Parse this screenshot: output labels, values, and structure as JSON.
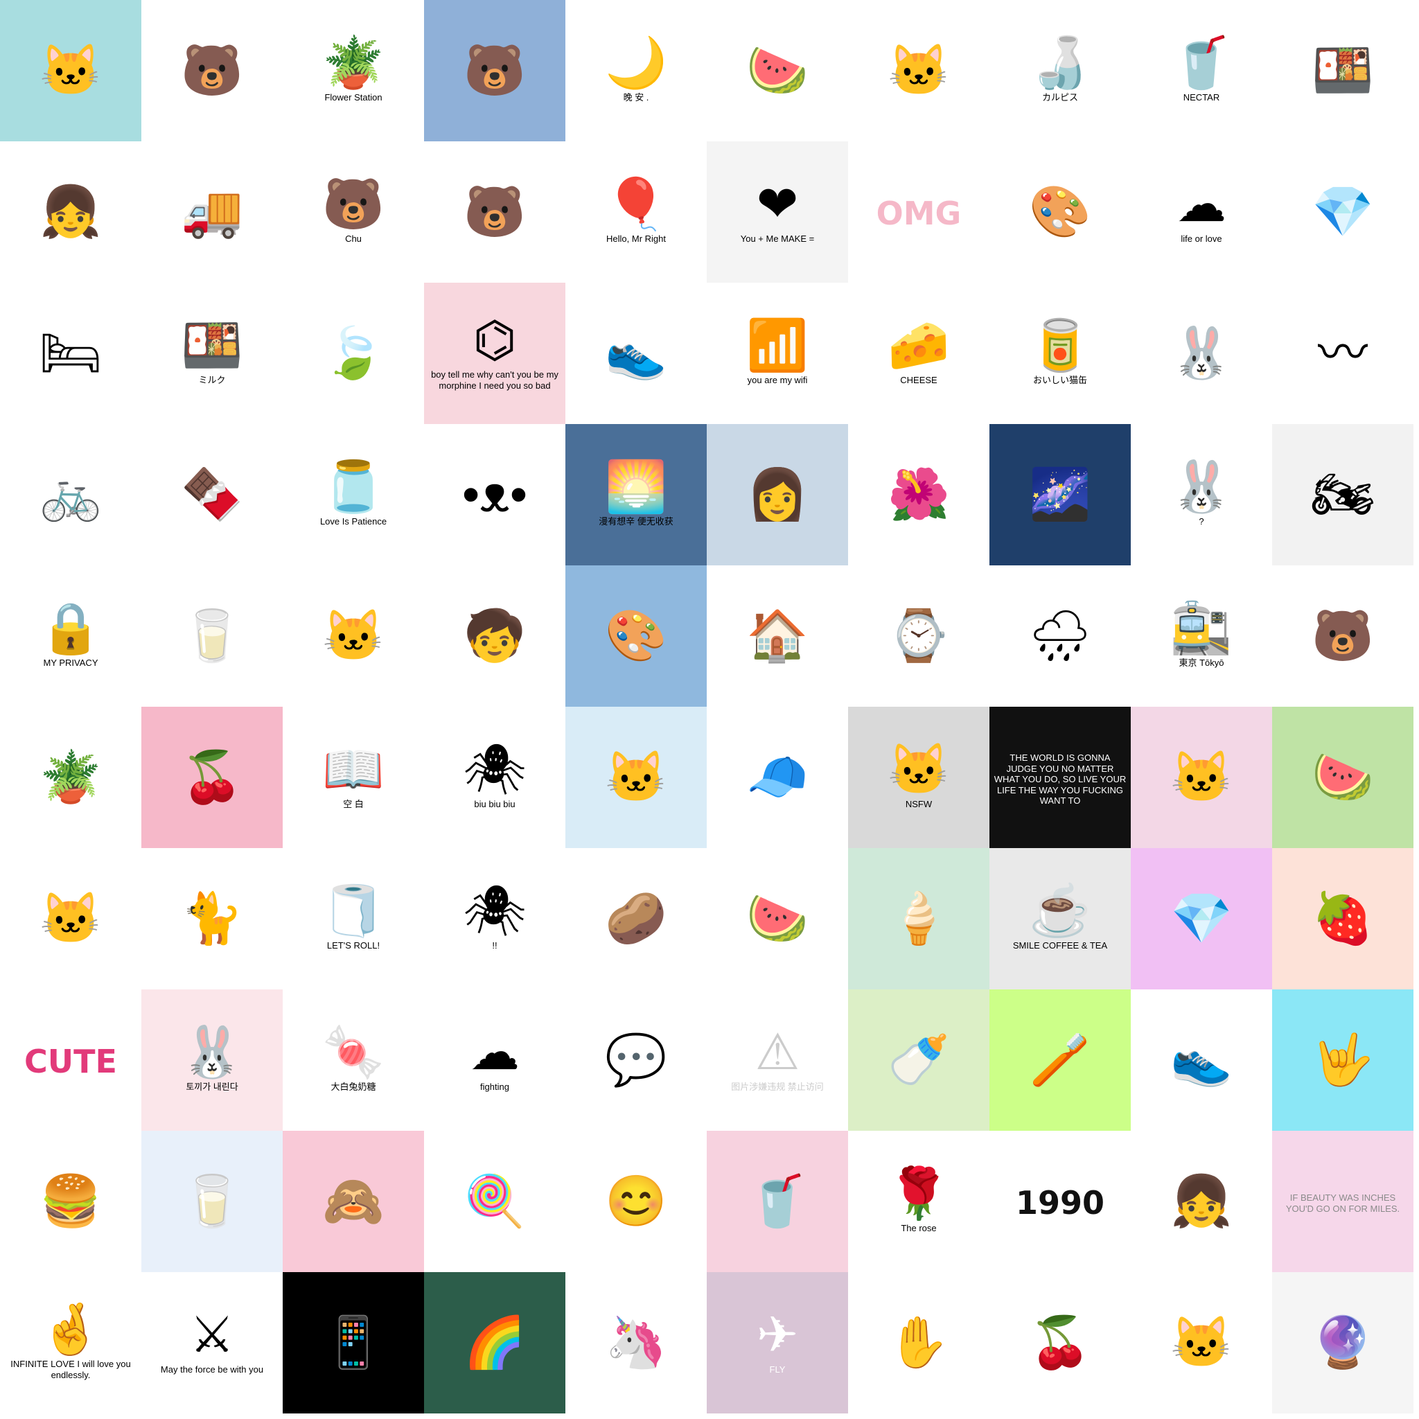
{
  "tiles": [
    {
      "name": "cat-pattern",
      "bg": "#a8dde0",
      "icon": "🐱",
      "caption": ""
    },
    {
      "name": "washing-machine",
      "bg": "#ffffff",
      "icon": "🐻",
      "caption": ""
    },
    {
      "name": "flower-pots",
      "bg": "#ffffff",
      "icon": "🪴",
      "caption": "Flower Station",
      "pattern": "lines"
    },
    {
      "name": "black-bears",
      "bg": "#8fb0d8",
      "icon": "🐻",
      "caption": ""
    },
    {
      "name": "good-night",
      "bg": "#ffffff",
      "icon": "🌙",
      "caption": "晚 安 ."
    },
    {
      "name": "watermelon-pops",
      "bg": "#ffffff",
      "icon": "🍉",
      "caption": "",
      "pattern": "grid"
    },
    {
      "name": "party-cat",
      "bg": "#ffffff",
      "icon": "🐱",
      "caption": ""
    },
    {
      "name": "water-bottle",
      "bg": "#ffffff",
      "icon": "🍶",
      "caption": "カルピス"
    },
    {
      "name": "nectar-drinks",
      "bg": "#ffffff",
      "icon": "🥤",
      "caption": "NECTAR"
    },
    {
      "name": "sushi-box",
      "bg": "#ffffff",
      "icon": "🍱",
      "caption": ""
    },
    {
      "name": "girl-sketch",
      "bg": "#ffffff",
      "icon": "👧",
      "caption": ""
    },
    {
      "name": "food-truck",
      "bg": "#ffffff",
      "icon": "🚚",
      "caption": ""
    },
    {
      "name": "kumamon-grid",
      "bg": "#ffffff",
      "icon": "🐻",
      "caption": "Chu",
      "pattern": "grid"
    },
    {
      "name": "kumamon-face",
      "bg": "#ffffff",
      "icon": "🐻",
      "caption": ""
    },
    {
      "name": "balloons",
      "bg": "#ffffff",
      "icon": "🎈",
      "caption": "Hello, Mr Right"
    },
    {
      "name": "you-me",
      "bg": "#f4f4f4",
      "icon": "❤",
      "caption": "You + Me MAKE ="
    },
    {
      "name": "omg",
      "bg": "#ffffff",
      "icon": "",
      "caption": "OMG",
      "big": true,
      "color": "#f5b8c8"
    },
    {
      "name": "paint-set",
      "bg": "#ffffff",
      "icon": "🎨",
      "caption": ""
    },
    {
      "name": "clouds",
      "bg": "#ffffff",
      "icon": "☁",
      "caption": "life or love"
    },
    {
      "name": "diamond-pink",
      "bg": "#ffffff",
      "icon": "💎",
      "caption": ""
    },
    {
      "name": "girl-bed",
      "bg": "#ffffff",
      "icon": "🛏",
      "caption": ""
    },
    {
      "name": "bento",
      "bg": "#ffffff",
      "icon": "🍱",
      "caption": "ミルク"
    },
    {
      "name": "small-leaf",
      "bg": "#ffffff",
      "icon": "🍃",
      "caption": ""
    },
    {
      "name": "morphine",
      "bg": "#f8d7de",
      "icon": "⌬",
      "caption": "boy tell me why can't you be my morphine I need you so bad"
    },
    {
      "name": "sneaker",
      "bg": "#ffffff",
      "icon": "👟",
      "caption": ""
    },
    {
      "name": "wifi",
      "bg": "#ffffff",
      "icon": "📶",
      "caption": "you are my wifi"
    },
    {
      "name": "cheese",
      "bg": "#ffffff",
      "icon": "🧀",
      "caption": "CHEESE"
    },
    {
      "name": "cat-can",
      "bg": "#ffffff",
      "icon": "🥫",
      "caption": "おいしい猫缶"
    },
    {
      "name": "bunny-plush",
      "bg": "#ffffff",
      "icon": "🐰",
      "caption": ""
    },
    {
      "name": "pink-scribble",
      "bg": "#ffffff",
      "icon": "〰",
      "caption": ""
    },
    {
      "name": "bike-couple",
      "bg": "#ffffff",
      "icon": "🚲",
      "caption": ""
    },
    {
      "name": "chocolates",
      "bg": "#ffffff",
      "icon": "🍫",
      "caption": ""
    },
    {
      "name": "rain-jar",
      "bg": "#ffffff",
      "icon": "🫙",
      "caption": "Love Is Patience"
    },
    {
      "name": "cute-face",
      "bg": "#ffffff",
      "icon": "•ᴥ•",
      "caption": ""
    },
    {
      "name": "sky-scene",
      "bg": "#4a6f98",
      "icon": "🌅",
      "caption": "漫有想辛 便无收获"
    },
    {
      "name": "blue-girl",
      "bg": "#c9d8e6",
      "icon": "👩",
      "caption": ""
    },
    {
      "name": "red-flowers-girl",
      "bg": "#ffffff",
      "icon": "🌺",
      "caption": ""
    },
    {
      "name": "starry-night",
      "bg": "#1f3f6a",
      "icon": "🌌",
      "caption": ""
    },
    {
      "name": "pink-bunny-girl",
      "bg": "#ffffff",
      "icon": "🐰",
      "caption": "?"
    },
    {
      "name": "moto-girl",
      "bg": "#f2f2f2",
      "icon": "🏍",
      "caption": ""
    },
    {
      "name": "my-privacy",
      "bg": "#ffffff",
      "icon": "🔒",
      "caption": "MY PRIVACY",
      "pattern": "grid"
    },
    {
      "name": "snacks",
      "bg": "#ffffff",
      "icon": "🥛",
      "caption": ""
    },
    {
      "name": "cats-peek",
      "bg": "#ffffff",
      "icon": "🐱",
      "caption": ""
    },
    {
      "name": "red-hood",
      "bg": "#ffffff",
      "icon": "🧒",
      "caption": ""
    },
    {
      "name": "painter-girl",
      "bg": "#8fb8de",
      "icon": "🎨",
      "caption": ""
    },
    {
      "name": "cabin",
      "bg": "#ffffff",
      "icon": "🏠",
      "caption": ""
    },
    {
      "name": "wrist-watch",
      "bg": "#ffffff",
      "icon": "⌚",
      "caption": ""
    },
    {
      "name": "rain-cloud",
      "bg": "#ffffff",
      "icon": "🌧",
      "caption": ""
    },
    {
      "name": "tokyo-sign",
      "bg": "#ffffff",
      "icon": "🚉",
      "caption": "東京 Tōkyō"
    },
    {
      "name": "bear-mountain",
      "bg": "#ffffff",
      "icon": "🐻",
      "caption": ""
    },
    {
      "name": "plants",
      "bg": "#ffffff",
      "icon": "🪴",
      "caption": ""
    },
    {
      "name": "cherries-pink",
      "bg": "#f6b8c9",
      "icon": "🍒",
      "caption": ""
    },
    {
      "name": "book-blank",
      "bg": "#ffffff",
      "icon": "📖",
      "caption": "空 白"
    },
    {
      "name": "spiderman-biu",
      "bg": "#ffffff",
      "icon": "🕷",
      "caption": "biu biu biu"
    },
    {
      "name": "anime-girl-cat",
      "bg": "#d9ecf7",
      "icon": "🐱",
      "caption": ""
    },
    {
      "name": "girl-cap",
      "bg": "#ffffff",
      "icon": "🧢",
      "caption": ""
    },
    {
      "name": "cat-nsfw",
      "bg": "#d9d9d9",
      "icon": "🐱",
      "caption": "NSFW"
    },
    {
      "name": "the-world-quote",
      "bg": "#111111",
      "icon": "",
      "caption": "THE WORLD IS GONNA JUDGE YOU NO MATTER WHAT YOU DO, SO LIVE YOUR LIFE THE WAY YOU FUCKING WANT TO",
      "color": "#ffffff"
    },
    {
      "name": "moon-cat",
      "bg": "#f3d7e6",
      "icon": "🐱",
      "caption": ""
    },
    {
      "name": "watermelon-green",
      "bg": "#bfe3a5",
      "icon": "🍉",
      "caption": ""
    },
    {
      "name": "stripe-cat",
      "bg": "#ffffff",
      "icon": "🐱",
      "caption": "",
      "pattern": "stripes"
    },
    {
      "name": "cat-sketch",
      "bg": "#ffffff",
      "icon": "🐈",
      "caption": ""
    },
    {
      "name": "toilet-roll",
      "bg": "#ffffff",
      "icon": "🧻",
      "caption": "LET'S ROLL!"
    },
    {
      "name": "spiderman-hang",
      "bg": "#ffffff",
      "icon": "🕷",
      "caption": "!!"
    },
    {
      "name": "potato-chips",
      "bg": "#ffffff",
      "icon": "🥔",
      "caption": ""
    },
    {
      "name": "watermelon-bowl",
      "bg": "#ffffff",
      "icon": "🍉",
      "caption": ""
    },
    {
      "name": "green-popsicles",
      "bg": "#cfe9d9",
      "icon": "🍦",
      "caption": ""
    },
    {
      "name": "smile-coffee",
      "bg": "#e9e9e9",
      "icon": "☕",
      "caption": "SMILE COFFEE & TEA"
    },
    {
      "name": "diamond-purple",
      "bg": "#f1c0f4",
      "icon": "💎",
      "caption": ""
    },
    {
      "name": "strawberry",
      "bg": "#fde2d8",
      "icon": "🍓",
      "caption": ""
    },
    {
      "name": "cute-fan",
      "bg": "#ffffff",
      "icon": "",
      "caption": "CUTE",
      "big": true,
      "color": "#e23a7a"
    },
    {
      "name": "bunny-pattern",
      "bg": "#fbe6ea",
      "icon": "🐰",
      "caption": "토끼가 내린다"
    },
    {
      "name": "white-rabbit-candy",
      "bg": "#ffffff",
      "icon": "🍬",
      "caption": "大白兔奶糖"
    },
    {
      "name": "fighting",
      "bg": "#ffffff",
      "icon": "☁",
      "caption": "fighting"
    },
    {
      "name": "chat-smile",
      "bg": "#ffffff",
      "icon": "💬",
      "caption": ""
    },
    {
      "name": "blocked-image",
      "bg": "#ffffff",
      "icon": "⚠",
      "caption": "图片涉嫌违规 禁止访问",
      "color": "#cccccc"
    },
    {
      "name": "milk-bottles",
      "bg": "#dcefc6",
      "icon": "🍼",
      "caption": ""
    },
    {
      "name": "toothpaste",
      "bg": "#ccff88",
      "icon": "🪥",
      "caption": ""
    },
    {
      "name": "legs-shoes",
      "bg": "#ffffff",
      "icon": "👟",
      "caption": ""
    },
    {
      "name": "rock-hand",
      "bg": "#8be7f6",
      "icon": "🤟",
      "caption": ""
    },
    {
      "name": "burger",
      "bg": "#ffffff",
      "icon": "🍔",
      "caption": "",
      "pattern": "grid"
    },
    {
      "name": "milk-carton",
      "bg": "#e8f0fa",
      "icon": "🥛",
      "caption": "",
      "pattern": "grid"
    },
    {
      "name": "three-faces",
      "bg": "#f9c9d7",
      "icon": "🙈",
      "caption": ""
    },
    {
      "name": "lollipop",
      "bg": "#ffffff",
      "icon": "🍭",
      "caption": ""
    },
    {
      "name": "smile-cry",
      "bg": "#ffffff",
      "icon": "😊",
      "caption": ""
    },
    {
      "name": "pink-cups",
      "bg": "#f7d2df",
      "icon": "🥤",
      "caption": ""
    },
    {
      "name": "the-rose",
      "bg": "#ffffff",
      "icon": "🌹",
      "caption": "The rose"
    },
    {
      "name": "1990-smiley",
      "bg": "#ffffff",
      "icon": "",
      "caption": "1990",
      "big": true,
      "color": "#111111"
    },
    {
      "name": "bob-hair-girl",
      "bg": "#ffffff",
      "icon": "👧",
      "caption": ""
    },
    {
      "name": "if-beauty",
      "bg": "#f6d7ea",
      "icon": "",
      "caption": "IF BEAUTY WAS INCHES YOU'D GO ON FOR MILES.",
      "color": "#8a8a8a",
      "pattern": "grid"
    },
    {
      "name": "infinite-love",
      "bg": "#ffffff",
      "icon": "🤞",
      "caption": "INFINITE LOVE I will love you endlessly."
    },
    {
      "name": "lightsabers",
      "bg": "#ffffff",
      "icon": "⚔",
      "caption": "May the force be with you"
    },
    {
      "name": "phone-charging",
      "bg": "#000000",
      "icon": "📱",
      "caption": "",
      "color": "#ffffff"
    },
    {
      "name": "forest-painting",
      "bg": "#2c5d4a",
      "icon": "🌈",
      "caption": ""
    },
    {
      "name": "unicorn",
      "bg": "#ffffff",
      "icon": "🦄",
      "caption": ""
    },
    {
      "name": "fly-wing",
      "bg": "#d9c5d6",
      "icon": "✈",
      "caption": "FLY",
      "color": "#ffffff"
    },
    {
      "name": "hand-face",
      "bg": "#ffffff",
      "icon": "✋",
      "caption": ""
    },
    {
      "name": "cherry-small",
      "bg": "#ffffff",
      "icon": "🍒",
      "caption": ""
    },
    {
      "name": "sitting-cat",
      "bg": "#ffffff",
      "icon": "🐱",
      "caption": ""
    },
    {
      "name": "magic-hand",
      "bg": "#f5f5f5",
      "icon": "🔮",
      "caption": ""
    }
  ]
}
